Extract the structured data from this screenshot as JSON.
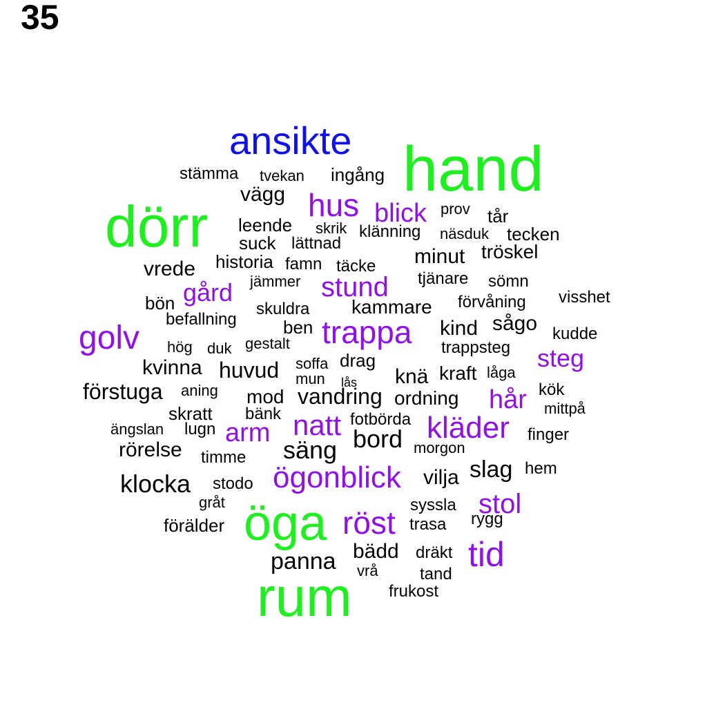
{
  "page_number": "35",
  "colors": {
    "tier1": "#1eef1e",
    "tier2": "#1010ee",
    "tier3": "#8f10ea",
    "tier4": "#000000"
  },
  "words": [
    {
      "text": "hand",
      "tier": "tier1"
    },
    {
      "text": "dörr",
      "tier": "tier1"
    },
    {
      "text": "öga",
      "tier": "tier1"
    },
    {
      "text": "rum",
      "tier": "tier1"
    },
    {
      "text": "ansikte",
      "tier": "tier2"
    },
    {
      "text": "hus",
      "tier": "tier3"
    },
    {
      "text": "blick",
      "tier": "tier3"
    },
    {
      "text": "gård",
      "tier": "tier3"
    },
    {
      "text": "stund",
      "tier": "tier3"
    },
    {
      "text": "golv",
      "tier": "tier3"
    },
    {
      "text": "trappa",
      "tier": "tier3"
    },
    {
      "text": "steg",
      "tier": "tier3"
    },
    {
      "text": "hår",
      "tier": "tier3"
    },
    {
      "text": "arm",
      "tier": "tier3"
    },
    {
      "text": "natt",
      "tier": "tier3"
    },
    {
      "text": "kläder",
      "tier": "tier3"
    },
    {
      "text": "ögonblick",
      "tier": "tier3"
    },
    {
      "text": "röst",
      "tier": "tier3"
    },
    {
      "text": "stol",
      "tier": "tier3"
    },
    {
      "text": "tid",
      "tier": "tier3"
    },
    {
      "text": "stämma",
      "tier": "tier4"
    },
    {
      "text": "tvekan",
      "tier": "tier4"
    },
    {
      "text": "ingång",
      "tier": "tier4"
    },
    {
      "text": "vägg",
      "tier": "tier4"
    },
    {
      "text": "prov",
      "tier": "tier4"
    },
    {
      "text": "tår",
      "tier": "tier4"
    },
    {
      "text": "leende",
      "tier": "tier4"
    },
    {
      "text": "skrik",
      "tier": "tier4"
    },
    {
      "text": "klänning",
      "tier": "tier4"
    },
    {
      "text": "näsduk",
      "tier": "tier4"
    },
    {
      "text": "tecken",
      "tier": "tier4"
    },
    {
      "text": "suck",
      "tier": "tier4"
    },
    {
      "text": "lättnad",
      "tier": "tier4"
    },
    {
      "text": "minut",
      "tier": "tier4"
    },
    {
      "text": "tröskel",
      "tier": "tier4"
    },
    {
      "text": "vrede",
      "tier": "tier4"
    },
    {
      "text": "historia",
      "tier": "tier4"
    },
    {
      "text": "famn",
      "tier": "tier4"
    },
    {
      "text": "täcke",
      "tier": "tier4"
    },
    {
      "text": "jämmer",
      "tier": "tier4"
    },
    {
      "text": "tjänare",
      "tier": "tier4"
    },
    {
      "text": "sömn",
      "tier": "tier4"
    },
    {
      "text": "visshet",
      "tier": "tier4"
    },
    {
      "text": "bön",
      "tier": "tier4"
    },
    {
      "text": "skuldra",
      "tier": "tier4"
    },
    {
      "text": "kammare",
      "tier": "tier4"
    },
    {
      "text": "förvåning",
      "tier": "tier4"
    },
    {
      "text": "befallning",
      "tier": "tier4"
    },
    {
      "text": "ben",
      "tier": "tier4"
    },
    {
      "text": "kind",
      "tier": "tier4"
    },
    {
      "text": "sågo",
      "tier": "tier4"
    },
    {
      "text": "kudde",
      "tier": "tier4"
    },
    {
      "text": "hög",
      "tier": "tier4"
    },
    {
      "text": "duk",
      "tier": "tier4"
    },
    {
      "text": "gestalt",
      "tier": "tier4"
    },
    {
      "text": "trappsteg",
      "tier": "tier4"
    },
    {
      "text": "kvinna",
      "tier": "tier4"
    },
    {
      "text": "huvud",
      "tier": "tier4"
    },
    {
      "text": "soffa",
      "tier": "tier4"
    },
    {
      "text": "drag",
      "tier": "tier4"
    },
    {
      "text": "mun",
      "tier": "tier4"
    },
    {
      "text": "lås",
      "tier": "tier4"
    },
    {
      "text": "knä",
      "tier": "tier4"
    },
    {
      "text": "kraft",
      "tier": "tier4"
    },
    {
      "text": "låga",
      "tier": "tier4"
    },
    {
      "text": "förstuga",
      "tier": "tier4"
    },
    {
      "text": "aning",
      "tier": "tier4"
    },
    {
      "text": "mod",
      "tier": "tier4"
    },
    {
      "text": "vandring",
      "tier": "tier4"
    },
    {
      "text": "ordning",
      "tier": "tier4"
    },
    {
      "text": "kök",
      "tier": "tier4"
    },
    {
      "text": "mittpå",
      "tier": "tier4"
    },
    {
      "text": "skratt",
      "tier": "tier4"
    },
    {
      "text": "bänk",
      "tier": "tier4"
    },
    {
      "text": "fotbörda",
      "tier": "tier4"
    },
    {
      "text": "ängslan",
      "tier": "tier4"
    },
    {
      "text": "lugn",
      "tier": "tier4"
    },
    {
      "text": "bord",
      "tier": "tier4"
    },
    {
      "text": "finger",
      "tier": "tier4"
    },
    {
      "text": "rörelse",
      "tier": "tier4"
    },
    {
      "text": "säng",
      "tier": "tier4"
    },
    {
      "text": "morgon",
      "tier": "tier4"
    },
    {
      "text": "timme",
      "tier": "tier4"
    },
    {
      "text": "slag",
      "tier": "tier4"
    },
    {
      "text": "hem",
      "tier": "tier4"
    },
    {
      "text": "klocka",
      "tier": "tier4"
    },
    {
      "text": "stodo",
      "tier": "tier4"
    },
    {
      "text": "vilja",
      "tier": "tier4"
    },
    {
      "text": "gråt",
      "tier": "tier4"
    },
    {
      "text": "syssla",
      "tier": "tier4"
    },
    {
      "text": "rygg",
      "tier": "tier4"
    },
    {
      "text": "förälder",
      "tier": "tier4"
    },
    {
      "text": "trasa",
      "tier": "tier4"
    },
    {
      "text": "bädd",
      "tier": "tier4"
    },
    {
      "text": "dräkt",
      "tier": "tier4"
    },
    {
      "text": "panna",
      "tier": "tier4"
    },
    {
      "text": "vrå",
      "tier": "tier4"
    },
    {
      "text": "tand",
      "tier": "tier4"
    },
    {
      "text": "frukost",
      "tier": "tier4"
    }
  ]
}
